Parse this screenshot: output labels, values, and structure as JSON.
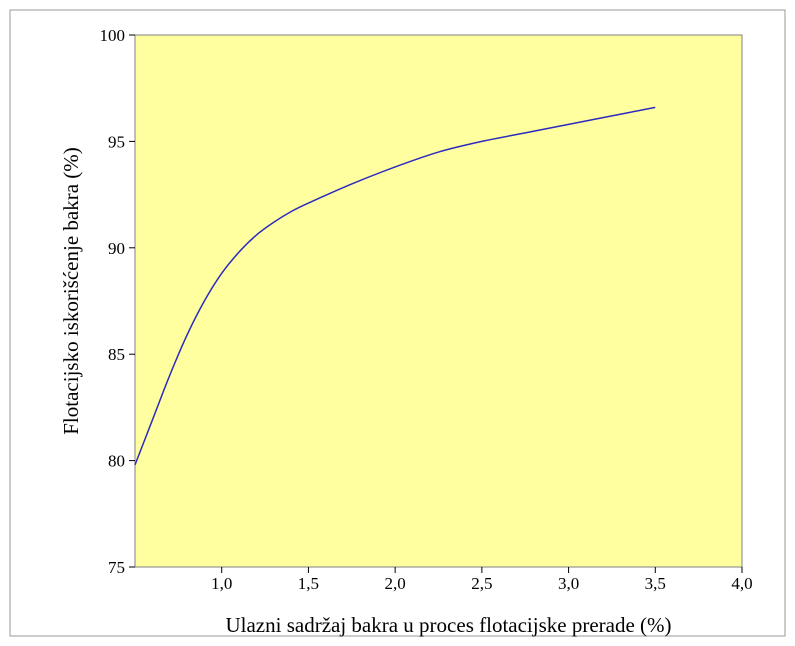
{
  "chart_data": {
    "type": "line",
    "title": "",
    "xlabel": "Ulazni sadržaj bakra u proces flotacijske prerade   (%)",
    "ylabel": "Flotacijsko iskorišćenje bakra  (%)",
    "xlim": [
      0.5,
      4.0
    ],
    "ylim": [
      75,
      100
    ],
    "x_ticks": [
      1.0,
      1.5,
      2.0,
      2.5,
      3.0,
      3.5,
      4.0
    ],
    "x_tick_labels": [
      "1,0",
      "1,5",
      "2,0",
      "2,5",
      "3,0",
      "3,5",
      "4,0"
    ],
    "y_ticks": [
      75,
      80,
      85,
      90,
      95,
      100
    ],
    "y_tick_labels": [
      "75",
      "80",
      "85",
      "90",
      "95",
      "100"
    ],
    "grid": false,
    "plot_background": "#ffffa0",
    "line_color": "#2b2bbf",
    "series": [
      {
        "x": [
          0.5,
          0.6,
          0.7,
          0.8,
          0.9,
          1.0,
          1.1,
          1.2,
          1.3,
          1.4,
          1.5,
          1.75,
          2.0,
          2.25,
          2.5,
          2.75,
          3.0,
          3.25,
          3.5
        ],
        "values": [
          79.8,
          81.9,
          84.0,
          85.9,
          87.5,
          88.8,
          89.8,
          90.6,
          91.2,
          91.7,
          92.1,
          93.0,
          93.8,
          94.5,
          95.0,
          95.4,
          95.8,
          96.2,
          96.6
        ]
      }
    ]
  }
}
